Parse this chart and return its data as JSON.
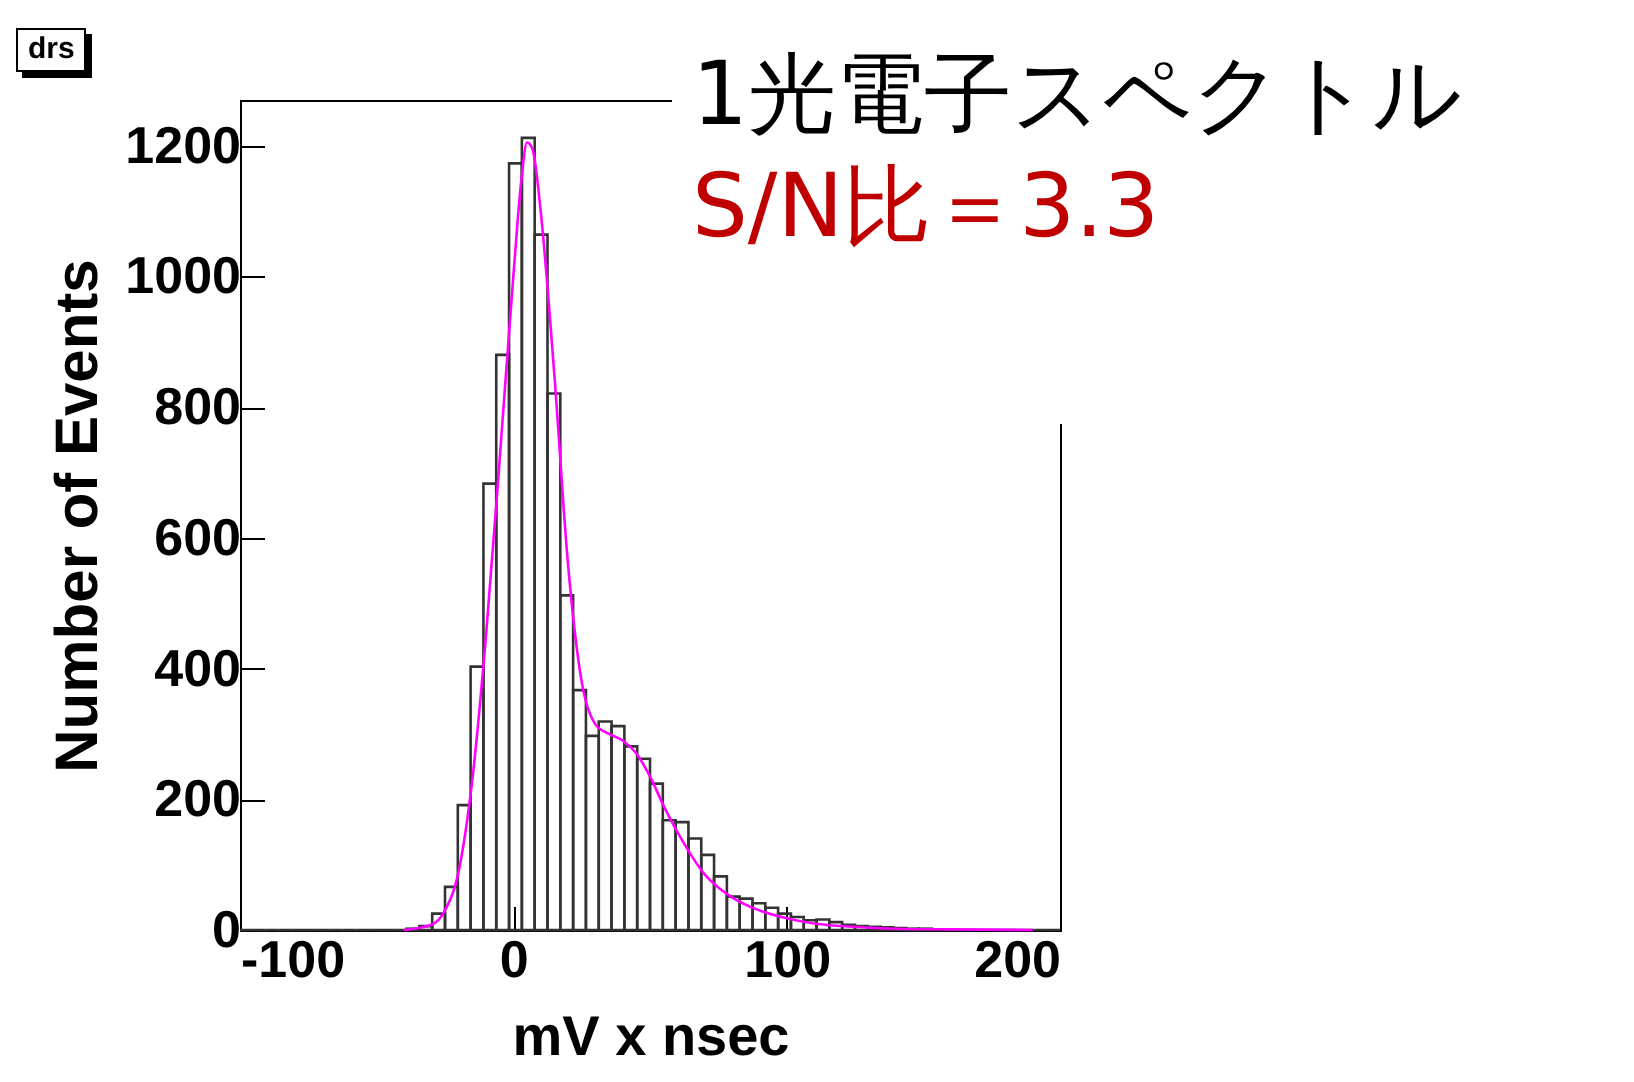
{
  "chart_data": {
    "type": "histogram",
    "title": "1光電子スペクトル",
    "subtitle": "S/N比＝3.3",
    "xlabel": "mV x nsec",
    "ylabel": "Number of Events",
    "annotations": [
      "drs"
    ],
    "bins": [
      -100,
      -95.3125,
      -90.625,
      -85.9375,
      -81.25,
      -76.5625,
      -71.875,
      -67.1875,
      -62.5,
      -57.8125,
      -53.125,
      -48.4375,
      -43.75,
      -39.0625,
      -34.375,
      -29.6875,
      -25,
      -20.3125,
      -15.625,
      -10.9375,
      -6.25,
      -1.5625,
      3.125,
      7.8125,
      12.5,
      17.1875,
      21.875,
      26.5625,
      31.25,
      35.9375,
      40.625,
      45.3125,
      50,
      54.6875,
      59.375,
      64.0625,
      68.75,
      73.4375,
      78.125,
      82.8125,
      87.5,
      92.1875,
      96.875,
      101.5625,
      106.25,
      110.9375,
      115.625,
      120.3125,
      125,
      129.6875,
      134.375,
      139.0625,
      143.75,
      148.4375,
      153.125,
      157.8125,
      162.5,
      167.1875,
      171.875,
      176.5625,
      181.25,
      185.9375,
      190.625,
      195.3125,
      200
    ],
    "values": [
      0,
      0,
      0,
      0,
      0,
      0,
      0,
      0,
      0,
      0,
      0,
      0,
      0,
      2,
      6,
      25,
      66,
      191,
      403,
      683,
      880,
      1173,
      1212,
      1064,
      821,
      512,
      367,
      297,
      319,
      312,
      281,
      262,
      224,
      168,
      165,
      140,
      115,
      82,
      51,
      48,
      41,
      34,
      25,
      20,
      15,
      16,
      12,
      8,
      6,
      5,
      4,
      3,
      2,
      2,
      1,
      0,
      0,
      0,
      0,
      0,
      0,
      0,
      0,
      0
    ],
    "color": "#333333",
    "series": [
      {
        "type": "line",
        "color": "#ff00ff",
        "x": [
          -40,
          -30,
          -25,
          -20,
          -15,
          -10,
          -5,
          0,
          3,
          5,
          7,
          10,
          15,
          20,
          25,
          30,
          35,
          40,
          45,
          50,
          55,
          60,
          65,
          70,
          75,
          80,
          90,
          100,
          110,
          120,
          140,
          160,
          190
        ],
        "values": [
          0,
          8,
          30,
          90,
          230,
          450,
          720,
          1000,
          1150,
          1205,
          1195,
          1100,
          850,
          560,
          380,
          315,
          300,
          290,
          270,
          235,
          190,
          150,
          115,
          85,
          65,
          50,
          30,
          18,
          10,
          6,
          2,
          1,
          0
        ]
      }
    ],
    "xlim": [
      -100,
      200
    ],
    "xticks": [
      -100,
      0,
      100,
      200
    ],
    "ylim": [
      0,
      1270
    ],
    "yticks": [
      0,
      200,
      400,
      600,
      800,
      1000,
      1200
    ],
    "grid": false
  }
}
